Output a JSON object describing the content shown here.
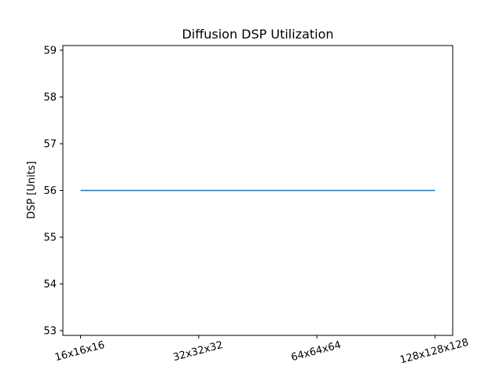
{
  "chart_data": {
    "type": "line",
    "title": "Diffusion DSP Utilization",
    "xlabel": "",
    "ylabel": "DSP [Units]",
    "categories": [
      "16x16x16",
      "32x32x32",
      "64x64x64",
      "128x128x128"
    ],
    "series": [
      {
        "values": [
          56,
          56,
          56,
          56
        ],
        "color": "#1f77b4"
      }
    ],
    "ylim": [
      52.9,
      59.1
    ],
    "yticks": [
      53,
      54,
      55,
      56,
      57,
      58,
      59
    ],
    "grid": false,
    "xtick_rotation_deg": 15
  }
}
